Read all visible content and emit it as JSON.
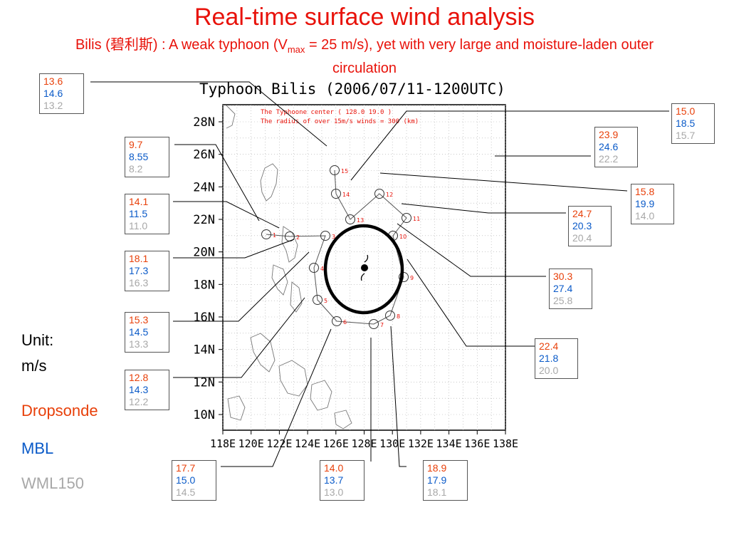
{
  "title": "Real-time surface wind analysis",
  "subtitle": {
    "pre": "Bilis (碧利斯) : A weak typhoon (V",
    "sub": "max",
    "post": " = 25 m/s), yet with very large and moisture-laden outer circulation"
  },
  "plot_title": "Typhoon Bilis (2006/07/11-1200UTC)",
  "annotation_center": "The Typhoone center ( 128.0 19.0 )",
  "annotation_radius": "The radius of over 15m/s winds = 300 (km)",
  "y_ticks": [
    "28N",
    "26N",
    "24N",
    "22N",
    "20N",
    "18N",
    "16N",
    "14N",
    "12N",
    "10N"
  ],
  "x_ticks": [
    "118E",
    "120E",
    "122E",
    "124E",
    "126E",
    "128E",
    "130E",
    "132E",
    "134E",
    "136E",
    "138E"
  ],
  "unit_label": "Unit:",
  "unit_value": "m/s",
  "legend": {
    "dropsonde": "Dropsonde",
    "mbl": "MBL",
    "wml": "WML150"
  },
  "colors": {
    "dropsonde": "#e8400a",
    "mbl": "#0a5ac8",
    "wml": "#a8a8a8",
    "title": "#e8120a"
  },
  "flight_points": [
    "1",
    "2",
    "3",
    "4",
    "5",
    "6",
    "7",
    "8",
    "9",
    "10",
    "11",
    "12",
    "13",
    "14",
    "15"
  ],
  "boxes": [
    {
      "id": "b1",
      "v": [
        "13.6",
        "14.6",
        "13.2"
      ]
    },
    {
      "id": "b2",
      "v": [
        "9.7",
        "8.55",
        "8.2"
      ]
    },
    {
      "id": "b3",
      "v": [
        "14.1",
        "11.5",
        "11.0"
      ]
    },
    {
      "id": "b4",
      "v": [
        "18.1",
        "17.3",
        "16.3"
      ]
    },
    {
      "id": "b5",
      "v": [
        "15.3",
        "14.5",
        "13.3"
      ]
    },
    {
      "id": "b6",
      "v": [
        "12.8",
        "14.3",
        "12.2"
      ]
    },
    {
      "id": "b7",
      "v": [
        "17.7",
        "15.0",
        "14.5"
      ]
    },
    {
      "id": "b8",
      "v": [
        "14.0",
        "13.7",
        "13.0"
      ]
    },
    {
      "id": "b9",
      "v": [
        "18.9",
        "17.9",
        "18.1"
      ]
    },
    {
      "id": "b10",
      "v": [
        "15.0",
        "18.5",
        "15.7"
      ]
    },
    {
      "id": "b11",
      "v": [
        "23.9",
        "24.6",
        "22.2"
      ]
    },
    {
      "id": "b12",
      "v": [
        "15.8",
        "19.9",
        "14.0"
      ]
    },
    {
      "id": "b13",
      "v": [
        "24.7",
        "20.3",
        "20.4"
      ]
    },
    {
      "id": "b14",
      "v": [
        "30.3",
        "27.4",
        "25.8"
      ]
    },
    {
      "id": "b15",
      "v": [
        "22.4",
        "21.8",
        "20.0"
      ]
    }
  ]
}
